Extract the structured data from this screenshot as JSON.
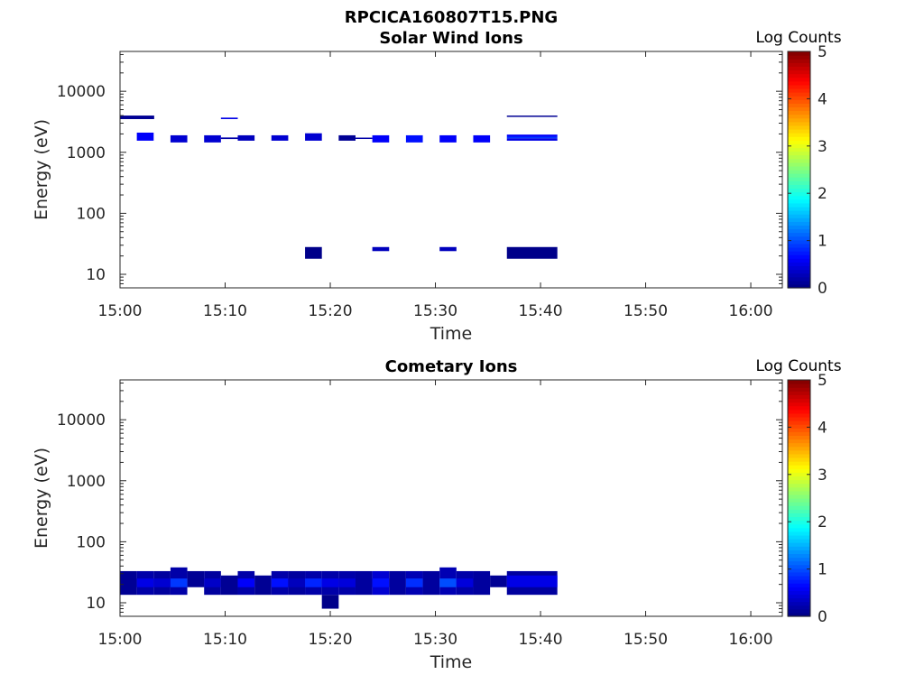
{
  "figure_title": "RPCICA160807T15.PNG",
  "chart_data": [
    {
      "type": "heatmap",
      "title": "Solar Wind Ions",
      "xlabel": "Time",
      "ylabel": "Energy (eV)",
      "y_scale": "log",
      "ylim": [
        6,
        45000
      ],
      "xlim": [
        "15:00",
        "16:03"
      ],
      "x_ticks": [
        "15:00",
        "15:10",
        "15:20",
        "15:30",
        "15:40",
        "15:50",
        "16:00"
      ],
      "y_ticks": [
        "10",
        "100",
        "1000",
        "10000"
      ],
      "colorbar": {
        "label": "Log Counts",
        "range": [
          0,
          5
        ],
        "ticks": [
          "0",
          "1",
          "2",
          "3",
          "4",
          "5"
        ],
        "colormap": "jet"
      },
      "cells": [
        {
          "t0": "15:00:00",
          "t1": "15:03:15",
          "e0": 3500,
          "e1": 4000,
          "v": 0.1
        },
        {
          "t0": "15:01:36",
          "t1": "15:03:12",
          "e0": 1550,
          "e1": 2100,
          "v": 0.6
        },
        {
          "t0": "15:04:48",
          "t1": "15:06:24",
          "e0": 1450,
          "e1": 1900,
          "v": 0.4
        },
        {
          "t0": "15:08:00",
          "t1": "15:09:36",
          "e0": 1450,
          "e1": 1900,
          "v": 0.4
        },
        {
          "t0": "15:09:36",
          "t1": "15:11:12",
          "e0": 1650,
          "e1": 1750,
          "v": 0.2
        },
        {
          "t0": "15:09:36",
          "t1": "15:11:12",
          "e0": 3500,
          "e1": 3700,
          "v": 0.5
        },
        {
          "t0": "15:11:12",
          "t1": "15:12:48",
          "e0": 1550,
          "e1": 1900,
          "v": 0.3
        },
        {
          "t0": "15:14:24",
          "t1": "15:16:00",
          "e0": 1550,
          "e1": 1900,
          "v": 0.4
        },
        {
          "t0": "15:17:36",
          "t1": "15:19:12",
          "e0": 1550,
          "e1": 2050,
          "v": 0.4
        },
        {
          "t0": "15:17:36",
          "t1": "15:19:12",
          "e0": 18,
          "e1": 28,
          "v": 0.05
        },
        {
          "t0": "15:20:48",
          "t1": "15:22:24",
          "e0": 1550,
          "e1": 1900,
          "v": 0.1
        },
        {
          "t0": "15:22:24",
          "t1": "15:24:00",
          "e0": 1680,
          "e1": 1740,
          "v": 0.2
        },
        {
          "t0": "15:24:00",
          "t1": "15:25:36",
          "e0": 1450,
          "e1": 1900,
          "v": 0.6
        },
        {
          "t0": "15:24:00",
          "t1": "15:25:36",
          "e0": 24,
          "e1": 28,
          "v": 0.3
        },
        {
          "t0": "15:27:12",
          "t1": "15:28:48",
          "e0": 1450,
          "e1": 1900,
          "v": 0.7
        },
        {
          "t0": "15:30:24",
          "t1": "15:32:00",
          "e0": 1450,
          "e1": 1900,
          "v": 0.6
        },
        {
          "t0": "15:30:24",
          "t1": "15:32:00",
          "e0": 24,
          "e1": 28,
          "v": 0.3
        },
        {
          "t0": "15:33:36",
          "t1": "15:35:12",
          "e0": 1450,
          "e1": 1900,
          "v": 0.6
        },
        {
          "t0": "15:36:48",
          "t1": "15:41:36",
          "e0": 3850,
          "e1": 4000,
          "v": 0.1
        },
        {
          "t0": "15:36:48",
          "t1": "15:41:36",
          "e0": 1550,
          "e1": 1700,
          "v": 0.5
        },
        {
          "t0": "15:36:48",
          "t1": "15:41:36",
          "e0": 1700,
          "e1": 1800,
          "v": 0.9
        },
        {
          "t0": "15:36:48",
          "t1": "15:41:36",
          "e0": 1800,
          "e1": 1950,
          "v": 0.6
        },
        {
          "t0": "15:36:48",
          "t1": "15:41:36",
          "e0": 18,
          "e1": 28,
          "v": 0.05
        }
      ]
    },
    {
      "type": "heatmap",
      "title": "Cometary Ions",
      "xlabel": "Time",
      "ylabel": "Energy (eV)",
      "y_scale": "log",
      "ylim": [
        6,
        45000
      ],
      "xlim": [
        "15:00",
        "16:03"
      ],
      "x_ticks": [
        "15:00",
        "15:10",
        "15:20",
        "15:30",
        "15:40",
        "15:50",
        "16:00"
      ],
      "y_ticks": [
        "10",
        "100",
        "1000",
        "10000"
      ],
      "colorbar": {
        "label": "Log Counts",
        "range": [
          0,
          5
        ],
        "ticks": [
          "0",
          "1",
          "2",
          "3",
          "4",
          "5"
        ],
        "colormap": "jet"
      },
      "cells": [
        {
          "t0": "15:00:00",
          "t1": "15:01:36",
          "e0": 13.5,
          "e1": 33,
          "v": 0.1
        },
        {
          "t0": "15:01:36",
          "t1": "15:03:12",
          "e0": 13.5,
          "e1": 33,
          "v": 0.2
        },
        {
          "t0": "15:01:36",
          "t1": "15:03:12",
          "e0": 18,
          "e1": 25,
          "v": 0.5
        },
        {
          "t0": "15:03:12",
          "t1": "15:04:48",
          "e0": 13.5,
          "e1": 33,
          "v": 0.15
        },
        {
          "t0": "15:03:12",
          "t1": "15:04:48",
          "e0": 18,
          "e1": 25,
          "v": 0.4
        },
        {
          "t0": "15:04:48",
          "t1": "15:06:24",
          "e0": 13.5,
          "e1": 38,
          "v": 0.2
        },
        {
          "t0": "15:04:48",
          "t1": "15:06:24",
          "e0": 18,
          "e1": 25,
          "v": 0.9
        },
        {
          "t0": "15:06:24",
          "t1": "15:08:00",
          "e0": 18,
          "e1": 33,
          "v": 0.1
        },
        {
          "t0": "15:08:00",
          "t1": "15:09:36",
          "e0": 13.5,
          "e1": 33,
          "v": 0.15
        },
        {
          "t0": "15:08:00",
          "t1": "15:09:36",
          "e0": 18,
          "e1": 25,
          "v": 0.35
        },
        {
          "t0": "15:09:36",
          "t1": "15:11:12",
          "e0": 13.5,
          "e1": 28,
          "v": 0.1
        },
        {
          "t0": "15:11:12",
          "t1": "15:12:48",
          "e0": 13.5,
          "e1": 33,
          "v": 0.2
        },
        {
          "t0": "15:11:12",
          "t1": "15:12:48",
          "e0": 18,
          "e1": 25,
          "v": 0.6
        },
        {
          "t0": "15:12:48",
          "t1": "15:14:24",
          "e0": 13.5,
          "e1": 28,
          "v": 0.1
        },
        {
          "t0": "15:14:24",
          "t1": "15:16:00",
          "e0": 13.5,
          "e1": 33,
          "v": 0.2
        },
        {
          "t0": "15:14:24",
          "t1": "15:16:00",
          "e0": 18,
          "e1": 25,
          "v": 0.7
        },
        {
          "t0": "15:16:00",
          "t1": "15:17:36",
          "e0": 13.5,
          "e1": 33,
          "v": 0.15
        },
        {
          "t0": "15:16:00",
          "t1": "15:17:36",
          "e0": 18,
          "e1": 25,
          "v": 0.3
        },
        {
          "t0": "15:17:36",
          "t1": "15:19:12",
          "e0": 13.5,
          "e1": 33,
          "v": 0.2
        },
        {
          "t0": "15:17:36",
          "t1": "15:19:12",
          "e0": 18,
          "e1": 25,
          "v": 0.8
        },
        {
          "t0": "15:19:12",
          "t1": "15:20:48",
          "e0": 8,
          "e1": 13.5,
          "v": 0.05
        },
        {
          "t0": "15:19:12",
          "t1": "15:20:48",
          "e0": 13.5,
          "e1": 33,
          "v": 0.2
        },
        {
          "t0": "15:19:12",
          "t1": "15:20:48",
          "e0": 18,
          "e1": 25,
          "v": 0.5
        },
        {
          "t0": "15:20:48",
          "t1": "15:22:24",
          "e0": 13.5,
          "e1": 33,
          "v": 0.2
        },
        {
          "t0": "15:20:48",
          "t1": "15:22:24",
          "e0": 18,
          "e1": 25,
          "v": 0.45
        },
        {
          "t0": "15:22:24",
          "t1": "15:24:00",
          "e0": 13.5,
          "e1": 33,
          "v": 0.15
        },
        {
          "t0": "15:24:00",
          "t1": "15:25:36",
          "e0": 13.5,
          "e1": 33,
          "v": 0.4
        },
        {
          "t0": "15:24:00",
          "t1": "15:25:36",
          "e0": 18,
          "e1": 25,
          "v": 0.7
        },
        {
          "t0": "15:25:36",
          "t1": "15:27:12",
          "e0": 13.5,
          "e1": 33,
          "v": 0.15
        },
        {
          "t0": "15:27:12",
          "t1": "15:28:48",
          "e0": 13.5,
          "e1": 33,
          "v": 0.25
        },
        {
          "t0": "15:27:12",
          "t1": "15:28:48",
          "e0": 18,
          "e1": 25,
          "v": 0.85
        },
        {
          "t0": "15:28:48",
          "t1": "15:30:24",
          "e0": 13.5,
          "e1": 33,
          "v": 0.15
        },
        {
          "t0": "15:30:24",
          "t1": "15:32:00",
          "e0": 13.5,
          "e1": 38,
          "v": 0.25
        },
        {
          "t0": "15:30:24",
          "t1": "15:32:00",
          "e0": 18,
          "e1": 25,
          "v": 1.0
        },
        {
          "t0": "15:32:00",
          "t1": "15:33:36",
          "e0": 13.5,
          "e1": 33,
          "v": 0.2
        },
        {
          "t0": "15:32:00",
          "t1": "15:33:36",
          "e0": 18,
          "e1": 25,
          "v": 0.45
        },
        {
          "t0": "15:33:36",
          "t1": "15:35:12",
          "e0": 13.5,
          "e1": 33,
          "v": 0.15
        },
        {
          "t0": "15:35:12",
          "t1": "15:36:48",
          "e0": 18,
          "e1": 28,
          "v": 0.1
        },
        {
          "t0": "15:36:48",
          "t1": "15:41:36",
          "e0": 13.5,
          "e1": 33,
          "v": 0.15
        },
        {
          "t0": "15:36:48",
          "t1": "15:41:36",
          "e0": 18,
          "e1": 28,
          "v": 0.5
        }
      ]
    }
  ]
}
